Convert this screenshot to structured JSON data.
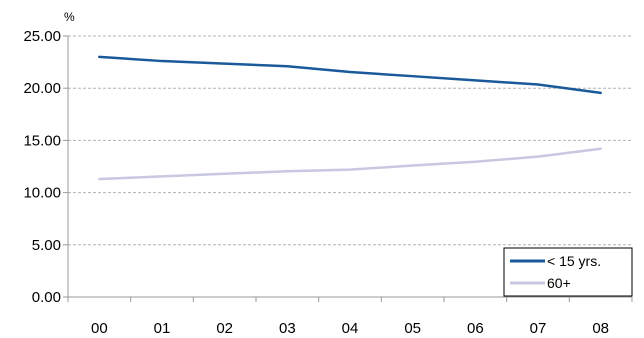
{
  "chart_data": {
    "type": "line",
    "ylabel": "%",
    "categories": [
      "00",
      "01",
      "02",
      "03",
      "04",
      "05",
      "06",
      "07",
      "08"
    ],
    "ylim": [
      0,
      25
    ],
    "yticks": [
      "0.00",
      "5.00",
      "10.00",
      "15.00",
      "20.00",
      "25.00"
    ],
    "grid": true,
    "legend_position": "bottom-right",
    "series": [
      {
        "name": "< 15 yrs.",
        "color": "#1a5a9a",
        "values": [
          23.0,
          22.6,
          22.35,
          22.1,
          21.55,
          21.15,
          20.75,
          20.35,
          19.55
        ]
      },
      {
        "name": "60+",
        "color": "#c8c8e2",
        "values": [
          11.3,
          11.55,
          11.8,
          12.05,
          12.2,
          12.6,
          12.95,
          13.45,
          14.2
        ]
      }
    ]
  }
}
